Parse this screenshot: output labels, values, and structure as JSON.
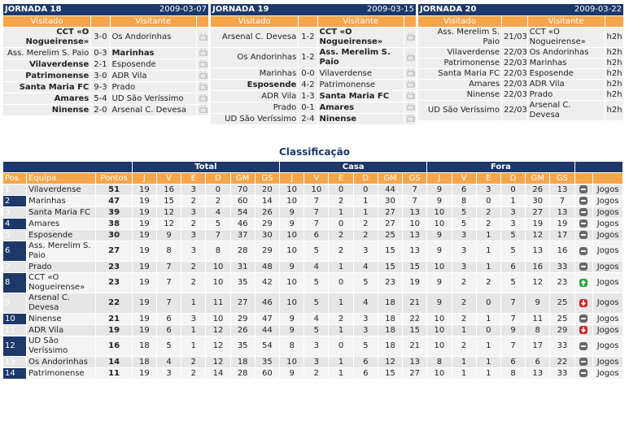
{
  "rounds": [
    {
      "title": "JORNADA 18",
      "date": "2009-03-07",
      "headers": [
        "Visitado",
        "Visitante"
      ],
      "matches": [
        {
          "home": "CCT «O Nogueirense»",
          "middle": "3-0",
          "away": "Os Andorinhas",
          "bold": "home"
        },
        {
          "home": "Ass. Merelim S. Paio",
          "middle": "0-3",
          "away": "Marinhas",
          "bold": "away"
        },
        {
          "home": "Vilaverdense",
          "middle": "2-1",
          "away": "Esposende",
          "bold": "home"
        },
        {
          "home": "Patrimonense",
          "middle": "3-0",
          "away": "ADR Vila",
          "bold": "home"
        },
        {
          "home": "Santa Maria FC",
          "middle": "9-3",
          "away": "Prado",
          "bold": "home"
        },
        {
          "home": "Amares",
          "middle": "5-4",
          "away": "UD São Veríssimo",
          "bold": "home"
        },
        {
          "home": "Ninense",
          "middle": "2-0",
          "away": "Arsenal C. Devesa",
          "bold": "home"
        }
      ]
    },
    {
      "title": "JORNADA 19",
      "date": "2009-03-15",
      "headers": [
        "Visitado",
        "Visitante"
      ],
      "matches": [
        {
          "home": "Arsenal C. Devesa",
          "middle": "1-2",
          "away": "CCT «O Nogueirense»",
          "bold": "away"
        },
        {
          "home": "Os Andorinhas",
          "middle": "1-2",
          "away": "Ass. Merelim S. Paio",
          "bold": "away"
        },
        {
          "home": "Marinhas",
          "middle": "0-0",
          "away": "Vilaverdense",
          "bold": "none"
        },
        {
          "home": "Esposende",
          "middle": "4-2",
          "away": "Patrimonense",
          "bold": "home"
        },
        {
          "home": "ADR Vila",
          "middle": "1-3",
          "away": "Santa Maria FC",
          "bold": "away"
        },
        {
          "home": "Prado",
          "middle": "0-1",
          "away": "Amares",
          "bold": "away"
        },
        {
          "home": "UD São Veríssimo",
          "middle": "2-4",
          "away": "Ninense",
          "bold": "away"
        }
      ]
    },
    {
      "title": "JORNADA 20",
      "date": "2009-03-22",
      "headers": [
        "Visitado",
        "Visitante"
      ],
      "matches": [
        {
          "home": "Ass. Merelim S. Paio",
          "middle": "21/03",
          "away": "CCT «O Nogueirense»",
          "bold": "none",
          "extra": "h2h"
        },
        {
          "home": "Vilaverdense",
          "middle": "22/03",
          "away": "Os Andorinhas",
          "bold": "none",
          "extra": "h2h"
        },
        {
          "home": "Patrimonense",
          "middle": "22/03",
          "away": "Marinhas",
          "bold": "none",
          "extra": "h2h"
        },
        {
          "home": "Santa Maria FC",
          "middle": "22/03",
          "away": "Esposende",
          "bold": "none",
          "extra": "h2h"
        },
        {
          "home": "Amares",
          "middle": "22/03",
          "away": "ADR Vila",
          "bold": "none",
          "extra": "h2h"
        },
        {
          "home": "Ninense",
          "middle": "22/03",
          "away": "Prado",
          "bold": "none",
          "extra": "h2h"
        },
        {
          "home": "UD São Veríssimo",
          "middle": "22/03",
          "away": "Arsenal C. Devesa",
          "bold": "none",
          "extra": "h2h"
        }
      ]
    }
  ],
  "standings": {
    "title": "Classificação",
    "groups": [
      "Total",
      "Casa",
      "Fora"
    ],
    "columns": [
      "Pos.",
      "Equipa",
      "Pontos",
      "J",
      "V",
      "E",
      "D",
      "GM",
      "GS",
      "J",
      "V",
      "E",
      "D",
      "GM",
      "GS",
      "J",
      "V",
      "E",
      "D",
      "GM",
      "GS"
    ],
    "rows": [
      {
        "pos": 1,
        "team": "Vilaverdense",
        "points": 51,
        "total": [
          19,
          16,
          3,
          0,
          70,
          20
        ],
        "home": [
          10,
          10,
          0,
          0,
          44,
          7
        ],
        "away": [
          9,
          6,
          3,
          0,
          26,
          13
        ],
        "trend": "same",
        "link": "Jogos"
      },
      {
        "pos": 2,
        "team": "Marinhas",
        "points": 47,
        "total": [
          19,
          15,
          2,
          2,
          60,
          14
        ],
        "home": [
          10,
          7,
          2,
          1,
          30,
          7
        ],
        "away": [
          9,
          8,
          0,
          1,
          30,
          7
        ],
        "trend": "same",
        "link": "Jogos"
      },
      {
        "pos": 3,
        "team": "Santa Maria FC",
        "points": 39,
        "total": [
          19,
          12,
          3,
          4,
          54,
          26
        ],
        "home": [
          9,
          7,
          1,
          1,
          27,
          13
        ],
        "away": [
          10,
          5,
          2,
          3,
          27,
          13
        ],
        "trend": "same",
        "link": "Jogos"
      },
      {
        "pos": 4,
        "team": "Amares",
        "points": 38,
        "total": [
          19,
          12,
          2,
          5,
          46,
          29
        ],
        "home": [
          9,
          7,
          0,
          2,
          27,
          10
        ],
        "away": [
          10,
          5,
          2,
          3,
          19,
          19
        ],
        "trend": "same",
        "link": "Jogos"
      },
      {
        "pos": 5,
        "team": "Esposende",
        "points": 30,
        "total": [
          19,
          9,
          3,
          7,
          37,
          30
        ],
        "home": [
          10,
          6,
          2,
          2,
          25,
          13
        ],
        "away": [
          9,
          3,
          1,
          5,
          12,
          17
        ],
        "trend": "same",
        "link": "Jogos"
      },
      {
        "pos": 6,
        "team": "Ass. Merelim S. Paio",
        "points": 27,
        "total": [
          19,
          8,
          3,
          8,
          28,
          29
        ],
        "home": [
          10,
          5,
          2,
          3,
          15,
          13
        ],
        "away": [
          9,
          3,
          1,
          5,
          13,
          16
        ],
        "trend": "same",
        "link": "Jogos"
      },
      {
        "pos": 7,
        "team": "Prado",
        "points": 23,
        "total": [
          19,
          7,
          2,
          10,
          31,
          48
        ],
        "home": [
          9,
          4,
          1,
          4,
          15,
          15
        ],
        "away": [
          10,
          3,
          1,
          6,
          16,
          33
        ],
        "trend": "same",
        "link": "Jogos"
      },
      {
        "pos": 8,
        "team": "CCT «O Nogueirense»",
        "points": 23,
        "total": [
          19,
          7,
          2,
          10,
          35,
          42
        ],
        "home": [
          10,
          5,
          0,
          5,
          23,
          19
        ],
        "away": [
          9,
          2,
          2,
          5,
          12,
          23
        ],
        "trend": "up",
        "link": "Jogos"
      },
      {
        "pos": 9,
        "team": "Arsenal C. Devesa",
        "points": 22,
        "total": [
          19,
          7,
          1,
          11,
          27,
          46
        ],
        "home": [
          10,
          5,
          1,
          4,
          18,
          21
        ],
        "away": [
          9,
          2,
          0,
          7,
          9,
          25
        ],
        "trend": "down",
        "link": "Jogos"
      },
      {
        "pos": 10,
        "team": "Ninense",
        "points": 21,
        "total": [
          19,
          6,
          3,
          10,
          29,
          47
        ],
        "home": [
          9,
          4,
          2,
          3,
          18,
          22
        ],
        "away": [
          10,
          2,
          1,
          7,
          11,
          25
        ],
        "trend": "same",
        "link": "Jogos"
      },
      {
        "pos": 11,
        "team": "ADR Vila",
        "points": 19,
        "total": [
          19,
          6,
          1,
          12,
          26,
          44
        ],
        "home": [
          9,
          5,
          1,
          3,
          18,
          15
        ],
        "away": [
          10,
          1,
          0,
          9,
          8,
          29
        ],
        "trend": "down",
        "link": "Jogos"
      },
      {
        "pos": 12,
        "team": "UD São Veríssimo",
        "points": 16,
        "total": [
          18,
          5,
          1,
          12,
          35,
          54
        ],
        "home": [
          8,
          3,
          0,
          5,
          18,
          21
        ],
        "away": [
          10,
          2,
          1,
          7,
          17,
          33
        ],
        "trend": "same",
        "link": "Jogos"
      },
      {
        "pos": 13,
        "team": "Os Andorinhas",
        "points": 14,
        "total": [
          18,
          4,
          2,
          12,
          18,
          35
        ],
        "home": [
          10,
          3,
          1,
          6,
          12,
          13
        ],
        "away": [
          8,
          1,
          1,
          6,
          6,
          22
        ],
        "trend": "same",
        "link": "Jogos"
      },
      {
        "pos": 14,
        "team": "Patrimonense",
        "points": 11,
        "total": [
          19,
          3,
          2,
          14,
          28,
          60
        ],
        "home": [
          9,
          2,
          1,
          6,
          15,
          27
        ],
        "away": [
          10,
          1,
          1,
          8,
          13,
          33
        ],
        "trend": "same",
        "link": "Jogos"
      }
    ]
  }
}
